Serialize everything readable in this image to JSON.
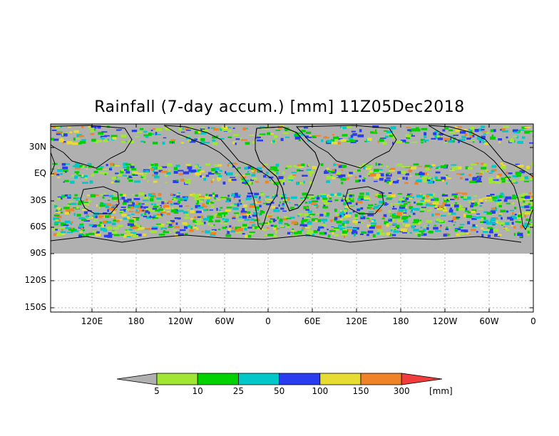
{
  "title": "Rainfall (7-day accum.) [mm] 11Z05Dec2018",
  "y_ticks": [
    "30N",
    "EQ",
    "30S",
    "60S",
    "90S",
    "120S",
    "150S"
  ],
  "x_ticks": [
    "120E",
    "180",
    "120W",
    "60W",
    "0",
    "60E",
    "120E",
    "180",
    "120W",
    "60W",
    "0"
  ],
  "colorbar": {
    "levels": [
      "5",
      "10",
      "25",
      "50",
      "100",
      "150",
      "300"
    ],
    "unit": "[mm]",
    "colors": [
      "#b0b0b0",
      "#a0e632",
      "#00d200",
      "#00c8c8",
      "#2a3cf0",
      "#e6dc32",
      "#f08228",
      "#f03c3c"
    ]
  },
  "colors": {
    "land_outline": "#000000",
    "no_rain": "#b0b0b0",
    "grid": "#999999"
  }
}
